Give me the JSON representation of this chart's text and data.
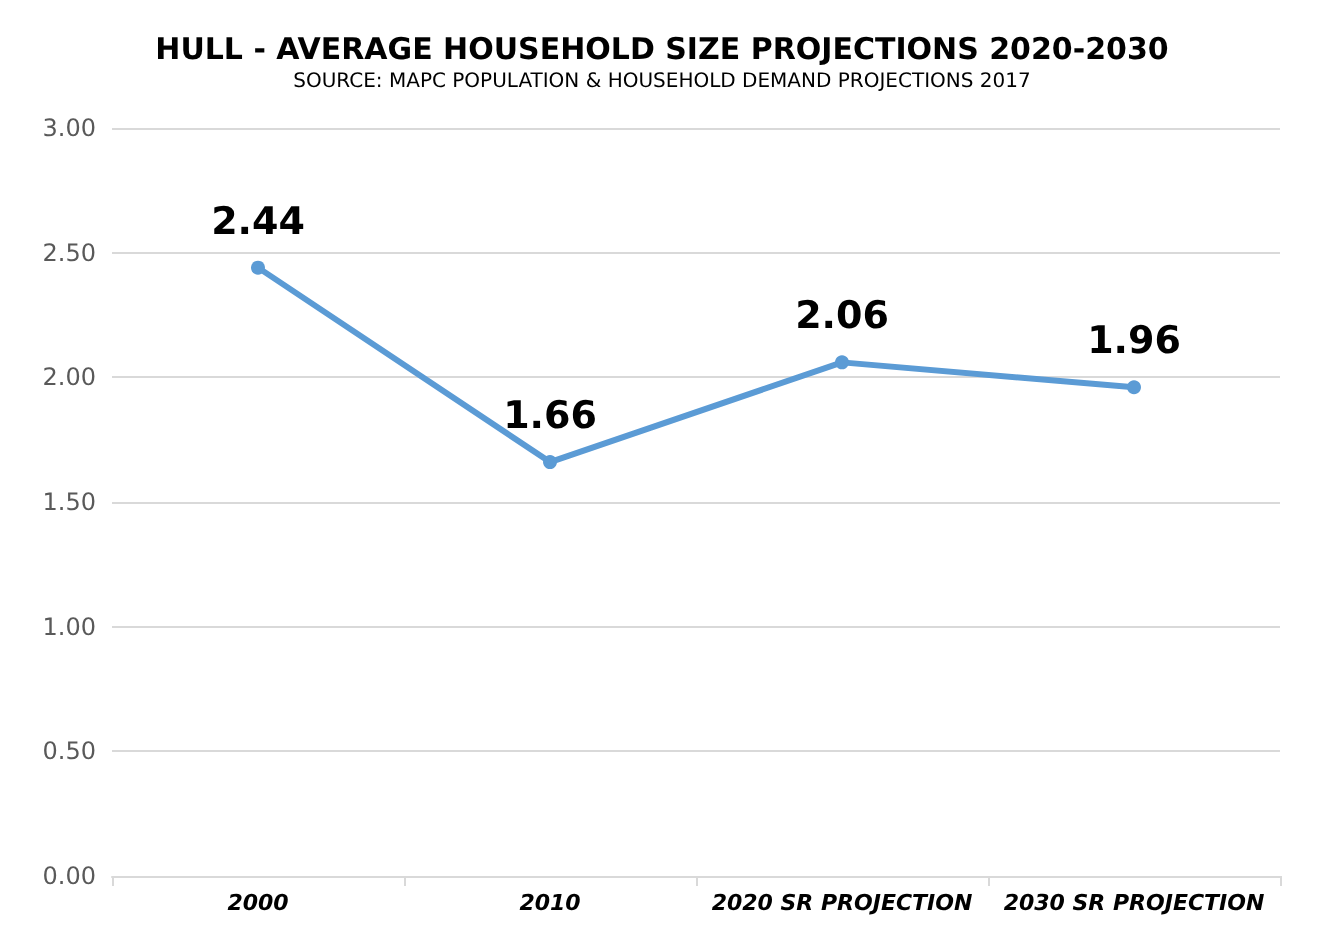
{
  "chart_data": {
    "type": "line",
    "title": "HULL - AVERAGE HOUSEHOLD SIZE PROJECTIONS 2020-2030",
    "subtitle": "SOURCE: MAPC POPULATION & HOUSEHOLD DEMAND PROJECTIONS 2017",
    "categories": [
      "2000",
      "2010",
      "2020 SR PROJECTION",
      "2030 SR PROJECTION"
    ],
    "series": [
      {
        "color": "#5b9bd5",
        "values": [
          2.44,
          1.66,
          2.06,
          1.96
        ]
      }
    ],
    "ylim": [
      0,
      3
    ],
    "yticks": [
      {
        "value": 0,
        "label": "0.00"
      },
      {
        "value": 0.5,
        "label": "0.50"
      },
      {
        "value": 1,
        "label": "1.00"
      },
      {
        "value": 1.5,
        "label": "1.50"
      },
      {
        "value": 2,
        "label": "2.00"
      },
      {
        "value": 2.5,
        "label": "2.50"
      },
      {
        "value": 3,
        "label": "3.00"
      }
    ],
    "grid": "y",
    "marker": "circle",
    "line_style": "solid",
    "data_labels": true
  }
}
